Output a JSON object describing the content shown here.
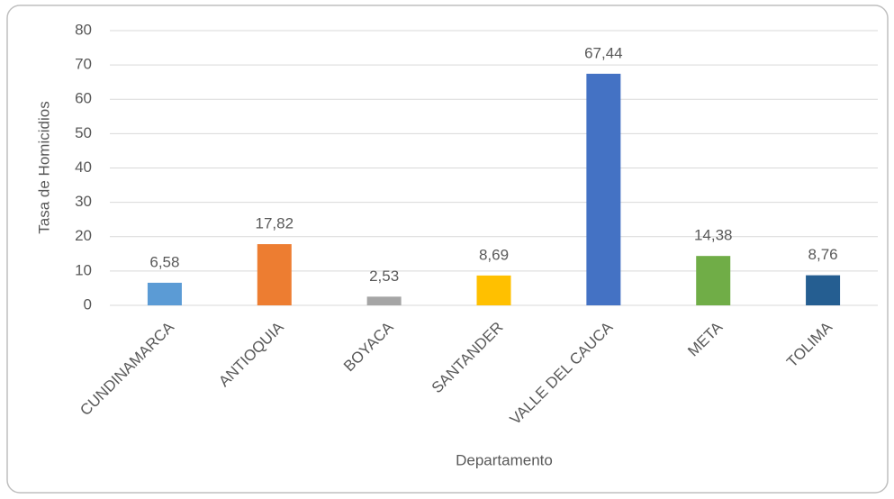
{
  "chart_data": {
    "type": "bar",
    "categories": [
      "CUNDINAMARCA",
      "ANTIOQUIA",
      "BOYACA",
      "SANTANDER",
      "VALLE DEL CAUCA",
      "META",
      "TOLIMA"
    ],
    "values": [
      6.58,
      17.82,
      2.53,
      8.69,
      67.44,
      14.38,
      8.76
    ],
    "value_labels": [
      "6,58",
      "17,82",
      "2,53",
      "8,69",
      "67,44",
      "14,38",
      "8,76"
    ],
    "colors": [
      "#5b9bd5",
      "#ed7d31",
      "#a5a5a5",
      "#ffc000",
      "#4472c4",
      "#70ad47",
      "#255e91"
    ],
    "xlabel": "Departamento",
    "ylabel": "Tasa de Homicidios",
    "ylim": [
      0,
      80
    ],
    "yticks": [
      0,
      10,
      20,
      30,
      40,
      50,
      60,
      70,
      80
    ],
    "grid": true
  }
}
